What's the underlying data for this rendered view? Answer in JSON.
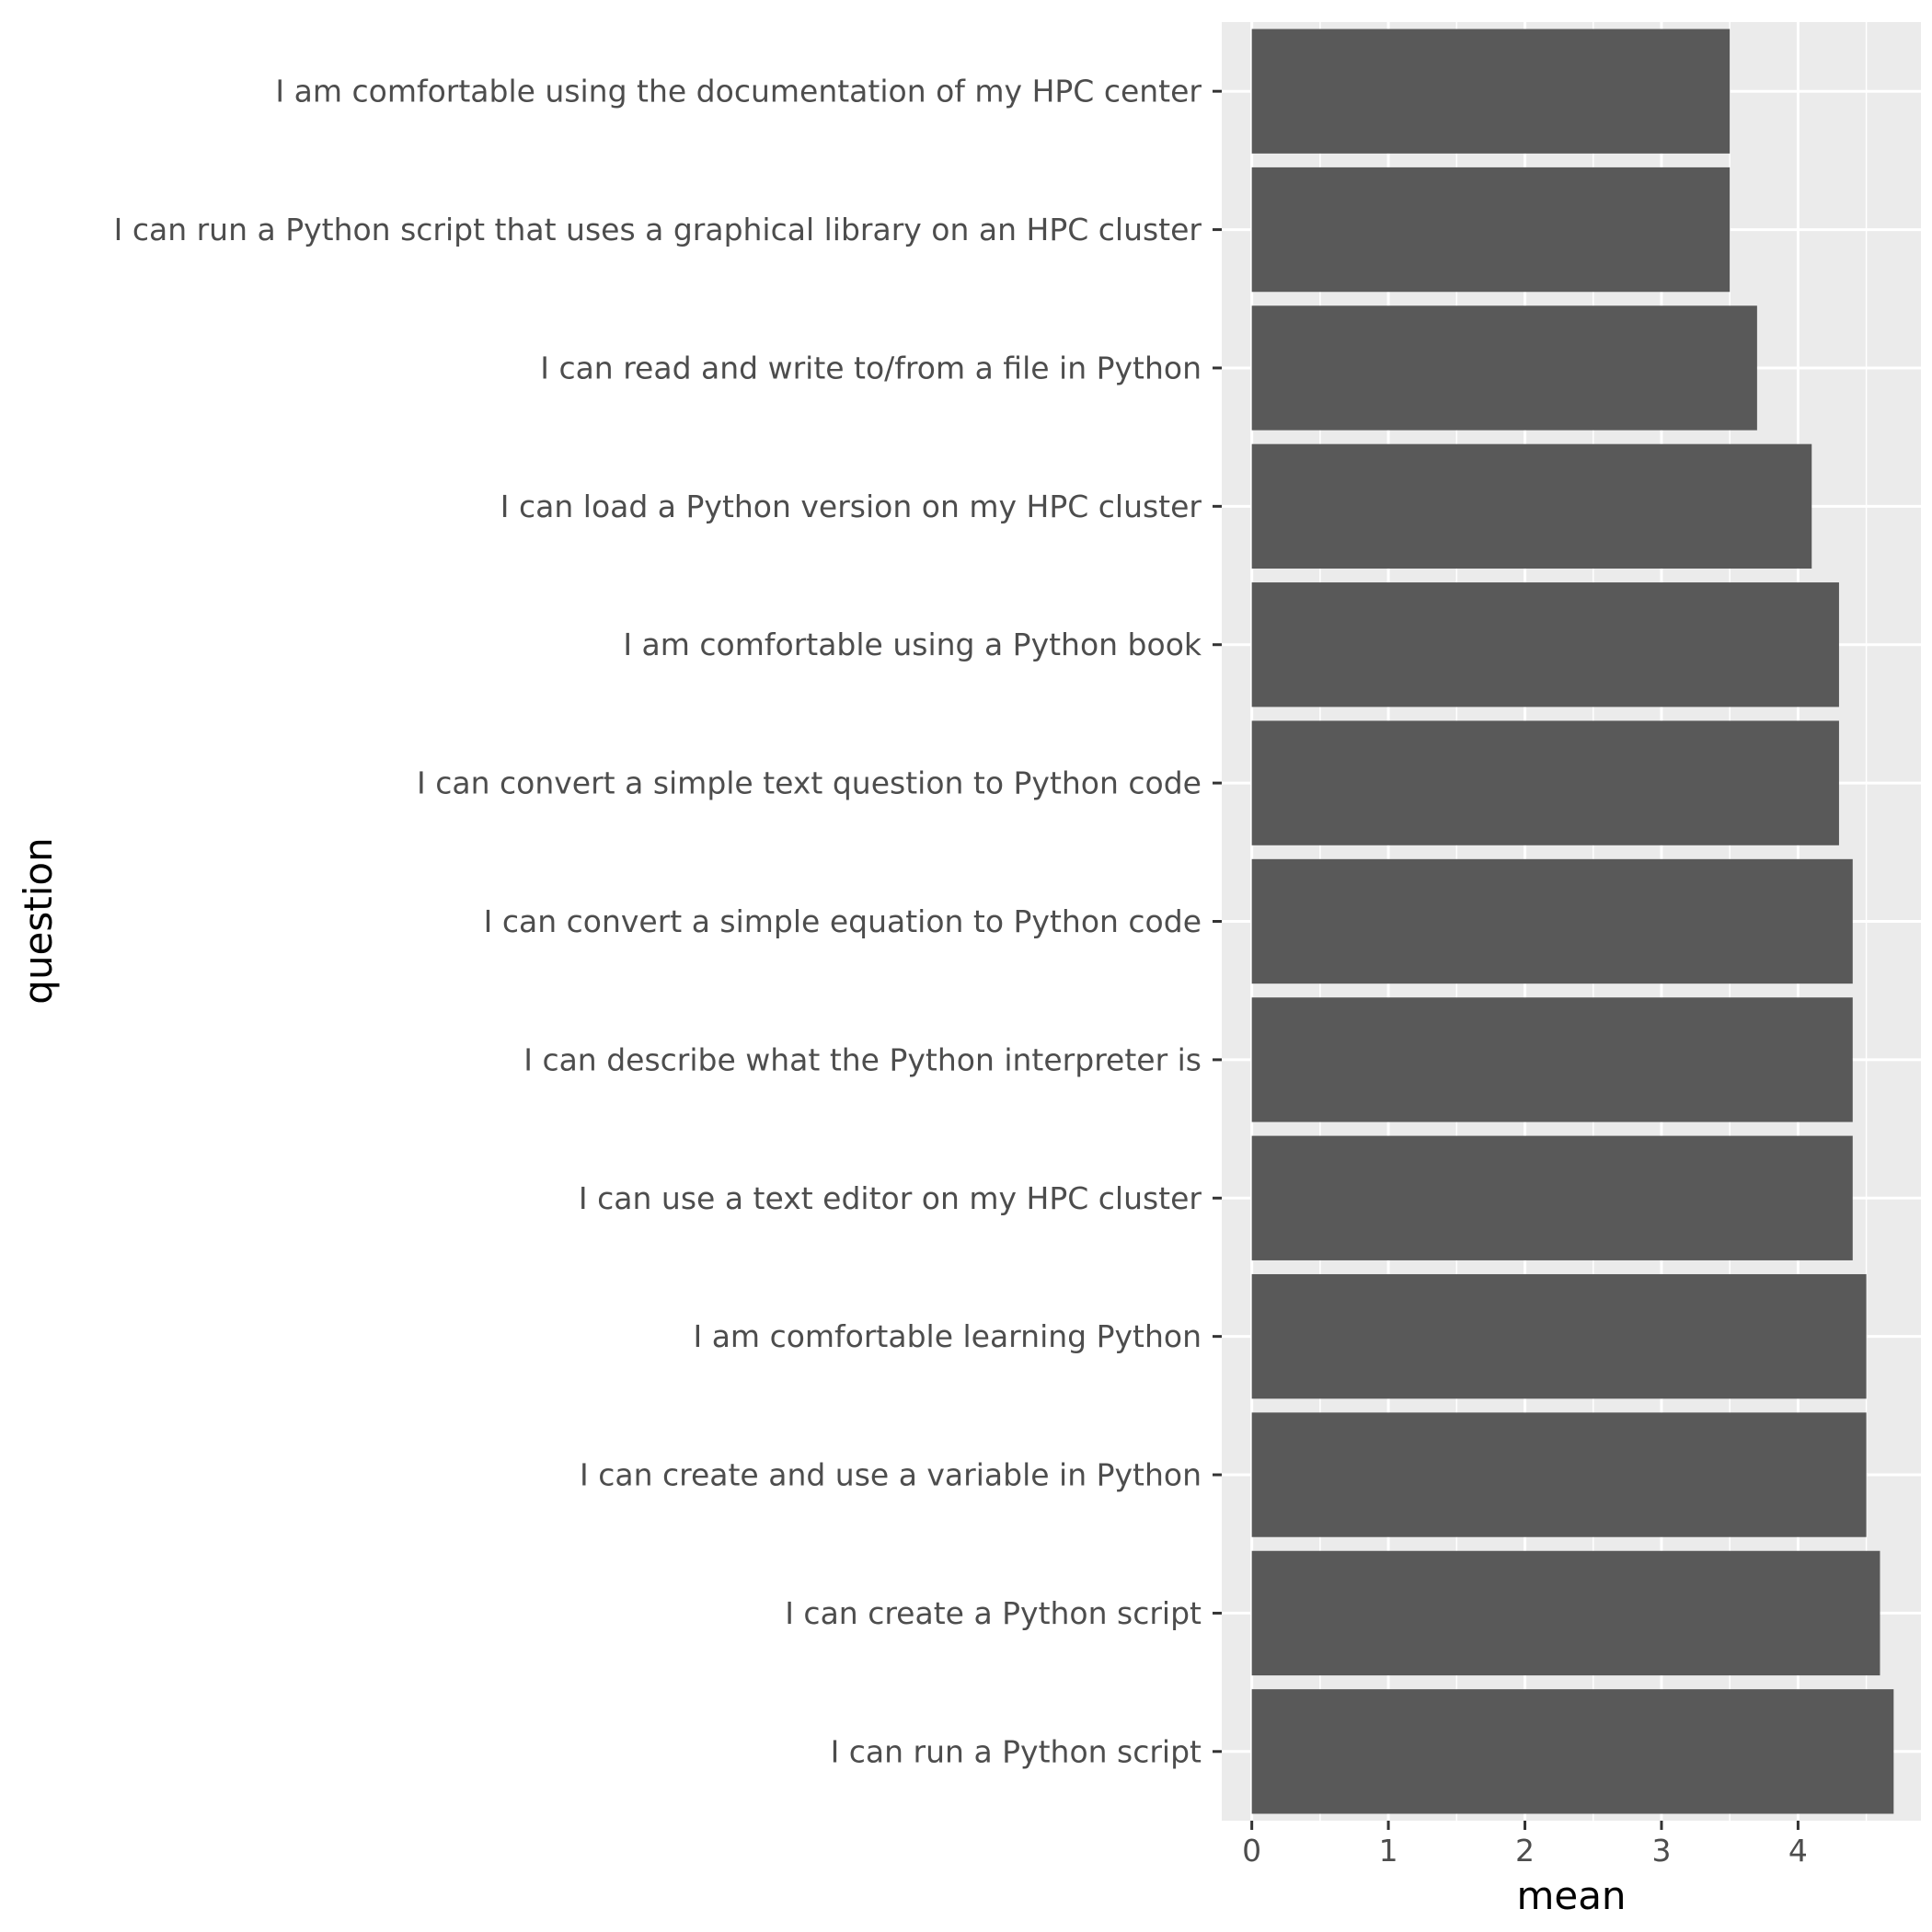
{
  "chart_data": {
    "type": "bar",
    "orientation": "horizontal",
    "xlabel": "mean",
    "ylabel": "question",
    "xlim": [
      -0.22,
      4.9
    ],
    "x_ticks": [
      "0",
      "1",
      "2",
      "3",
      "4"
    ],
    "x_tick_values": [
      0,
      1,
      2,
      3,
      4
    ],
    "grid": true,
    "legend": "none",
    "colors": {
      "panel": "#ebebeb",
      "bar": "#595959",
      "grid": "#ffffff",
      "tick_text": "#4d4d4d",
      "tick_mark": "#333333"
    },
    "categories": [
      "I am comfortable using the documentation of my HPC center",
      "I can run a Python script that uses a graphical library on an HPC cluster",
      "I can read and write to/from a file in Python",
      "I can load a Python version on my HPC cluster",
      "I am comfortable using a Python book",
      "I can convert a simple text question to Python code",
      "I can convert a simple equation to Python code",
      "I can describe what the Python interpreter is",
      "I can use a text editor on my HPC cluster",
      "I am comfortable learning Python",
      "I can create and use a variable in Python",
      "I can create a Python script",
      "I can run a Python script"
    ],
    "values": [
      3.5,
      3.5,
      3.7,
      4.1,
      4.3,
      4.3,
      4.4,
      4.4,
      4.4,
      4.5,
      4.5,
      4.6,
      4.7
    ]
  }
}
